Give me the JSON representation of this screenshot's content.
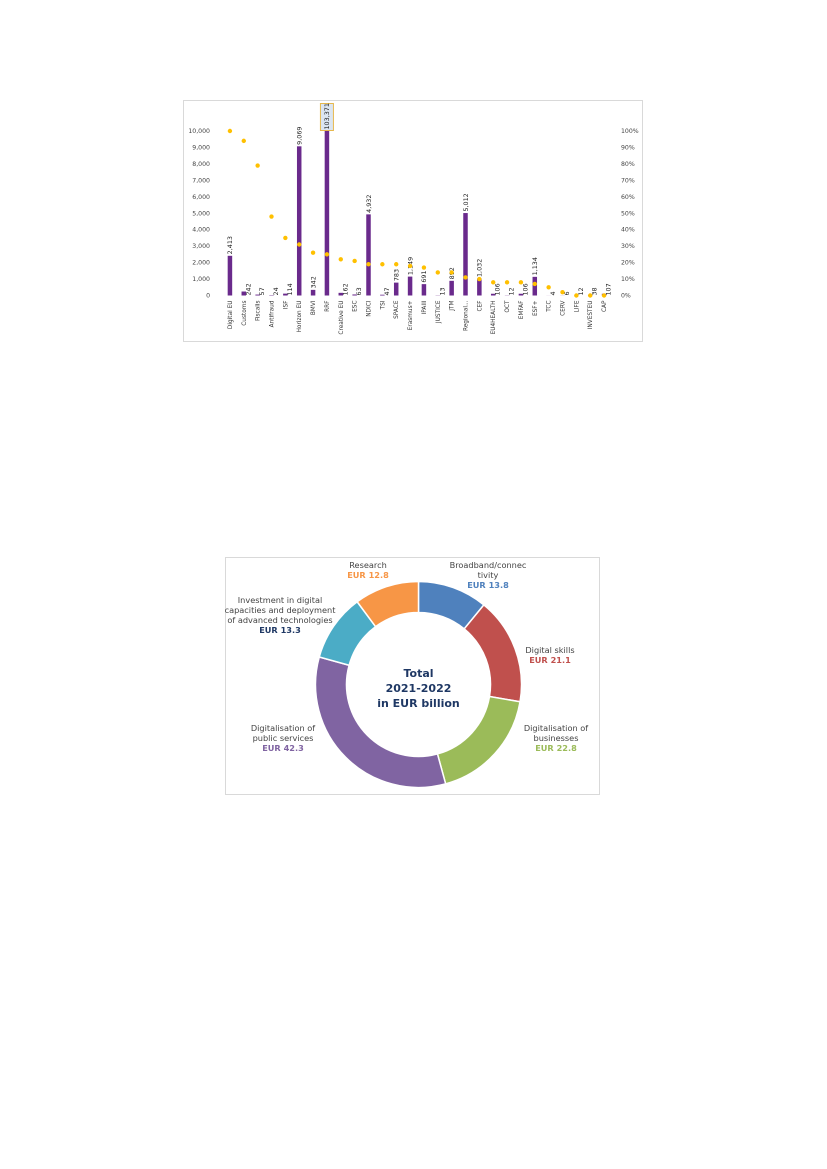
{
  "charts": [
    {
      "type": "bar",
      "categories": [
        "Digital EU",
        "Customs",
        "Fiscalis",
        "Antifraud",
        "ISF",
        "Horizon EU",
        "BMVI",
        "RRF",
        "Creative EU",
        "ESC",
        "NDICI",
        "TSI",
        "SPACE",
        "Erasmus+",
        "IPAIII",
        "JUSTICE",
        "JTM",
        "Regional...",
        "CEF",
        "EU4HEALTH",
        "OCT",
        "EMFAF",
        "ESF+",
        "TCC",
        "CERV",
        "LIFE",
        "INVESTEU",
        "CAP"
      ],
      "value_labels": [
        "2,413",
        "242",
        "57",
        "24",
        "114",
        "9,069",
        "342",
        "103,371",
        "162",
        "63",
        "4,932",
        "47",
        "783",
        "1,149",
        "691",
        "13",
        "892",
        "5,012",
        "1,032",
        "106",
        "12",
        "106",
        "1,134",
        "4",
        "6",
        "12",
        "38",
        "107"
      ],
      "values": [
        2413,
        242,
        57,
        24,
        114,
        9069,
        342,
        103371,
        162,
        63,
        4932,
        47,
        783,
        1149,
        691,
        13,
        892,
        5012,
        1032,
        106,
        12,
        106,
        1134,
        4,
        6,
        12,
        38,
        107
      ],
      "share_percent": [
        100,
        94,
        79,
        48,
        35,
        31,
        26,
        25,
        22,
        21,
        19,
        19,
        19,
        18,
        17,
        14,
        14,
        11,
        10,
        8,
        8,
        8,
        7,
        5,
        2,
        0,
        0,
        0
      ],
      "y_ticks": [
        "0",
        "1,000",
        "2,000",
        "3,000",
        "4,000",
        "5,000",
        "6,000",
        "7,000",
        "8,000",
        "9,000",
        "10,000"
      ],
      "y2_ticks": [
        "0%",
        "10%",
        "20%",
        "30%",
        "40%",
        "50%",
        "60%",
        "70%",
        "80%",
        "90%",
        "100%"
      ],
      "ylim": [
        0,
        10000
      ],
      "y2lim": [
        0,
        100
      ],
      "bar_color": "#6a2a8c",
      "dot_color": "#ffc000",
      "clipped_highlight_color": "#dbe5f1",
      "clipped_highlight_border": "#e6b84d",
      "grid": false,
      "legend": "none"
    },
    {
      "type": "pie",
      "style": "donut",
      "center_text": [
        "Total",
        "2021-2022",
        "in EUR billion"
      ],
      "slices": [
        {
          "label": "Broadband/connectivity",
          "label_lines": [
            "Broadband/connec",
            "tivity"
          ],
          "value": 13.8,
          "value_text": "EUR 13.8",
          "color": "#4f81bd"
        },
        {
          "label": "Digital skills",
          "label_lines": [
            "Digital skills"
          ],
          "value": 21.1,
          "value_text": "EUR 21.1",
          "color": "#c0504d"
        },
        {
          "label": "Digitalisation of businesses",
          "label_lines": [
            "Digitalisation of",
            "businesses"
          ],
          "value": 22.8,
          "value_text": "EUR 22.8",
          "color": "#9bbb59"
        },
        {
          "label": "Digitalisation of public services",
          "label_lines": [
            "Digitalisation of",
            "public services"
          ],
          "value": 42.3,
          "value_text": "EUR 42.3",
          "color": "#8064a2"
        },
        {
          "label": "Investment in digital capacities and deployment of advanced technologies",
          "label_lines": [
            "Investment in digital",
            "capacities and deployment",
            "of advanced technologies"
          ],
          "value": 13.3,
          "value_text": "EUR 13.3",
          "color": "#4bacc6",
          "value_color": "#1f3864"
        },
        {
          "label": "Research",
          "label_lines": [
            "Research"
          ],
          "value": 12.8,
          "value_text": "EUR 12.8",
          "color": "#f79646"
        }
      ]
    }
  ]
}
